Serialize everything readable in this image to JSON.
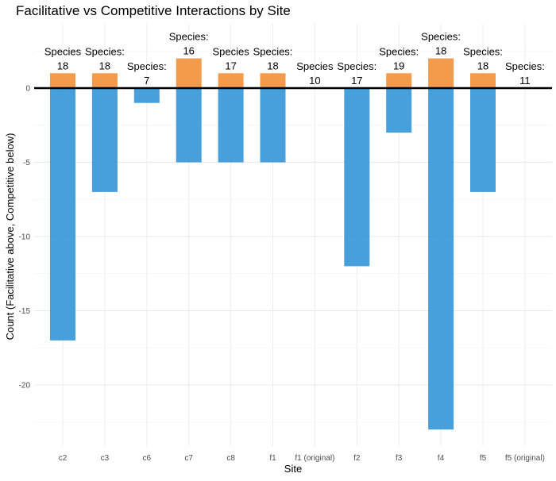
{
  "chart_data": {
    "type": "bar",
    "title": "Facilitative vs Competitive Interactions by Site",
    "xlabel": "Site",
    "ylabel": "Count (Facilitative above, Competitive below)",
    "categories": [
      "c2",
      "c3",
      "c6",
      "c7",
      "c8",
      "f1",
      "f1 (original)",
      "f2",
      "f3",
      "f4",
      "f5",
      "f5 (original)"
    ],
    "series": [
      {
        "name": "Facilitative",
        "color": "#f39b4b",
        "values": [
          1,
          1,
          0,
          2,
          1,
          1,
          0,
          0,
          1,
          2,
          1,
          0
        ]
      },
      {
        "name": "Competitive",
        "color": "#3d9ad9",
        "values": [
          -17,
          -7,
          -1,
          -5,
          -5,
          -5,
          0,
          -12,
          -3,
          -23,
          -7,
          0
        ]
      }
    ],
    "labels": [
      {
        "prefix": "Species",
        "text": "18",
        "species_count": 18
      },
      {
        "prefix": "Species:",
        "text": "18",
        "species_count": 18
      },
      {
        "prefix": "Species:",
        "text": "7",
        "species_count": 7
      },
      {
        "prefix": "Species:",
        "text": "16",
        "species_count": 16
      },
      {
        "prefix": "Species",
        "text": "17",
        "species_count": 17
      },
      {
        "prefix": "Species:",
        "text": "18",
        "species_count": 18
      },
      {
        "prefix": "Species",
        "text": "10",
        "species_count": 10
      },
      {
        "prefix": "Species:",
        "text": "17",
        "species_count": 17
      },
      {
        "prefix": "Species:",
        "text": "19",
        "species_count": 19
      },
      {
        "prefix": "Species:",
        "text": "18",
        "species_count": 18
      },
      {
        "prefix": "Species:",
        "text": "18",
        "species_count": 18
      },
      {
        "prefix": "Species:",
        "text": "11",
        "species_count": 11
      }
    ],
    "y_ticks": [
      0,
      -5,
      -10,
      -15,
      -20
    ],
    "ylim": [
      -23.9,
      2.6
    ],
    "zero_line": true,
    "grid": true,
    "legend": "none"
  }
}
